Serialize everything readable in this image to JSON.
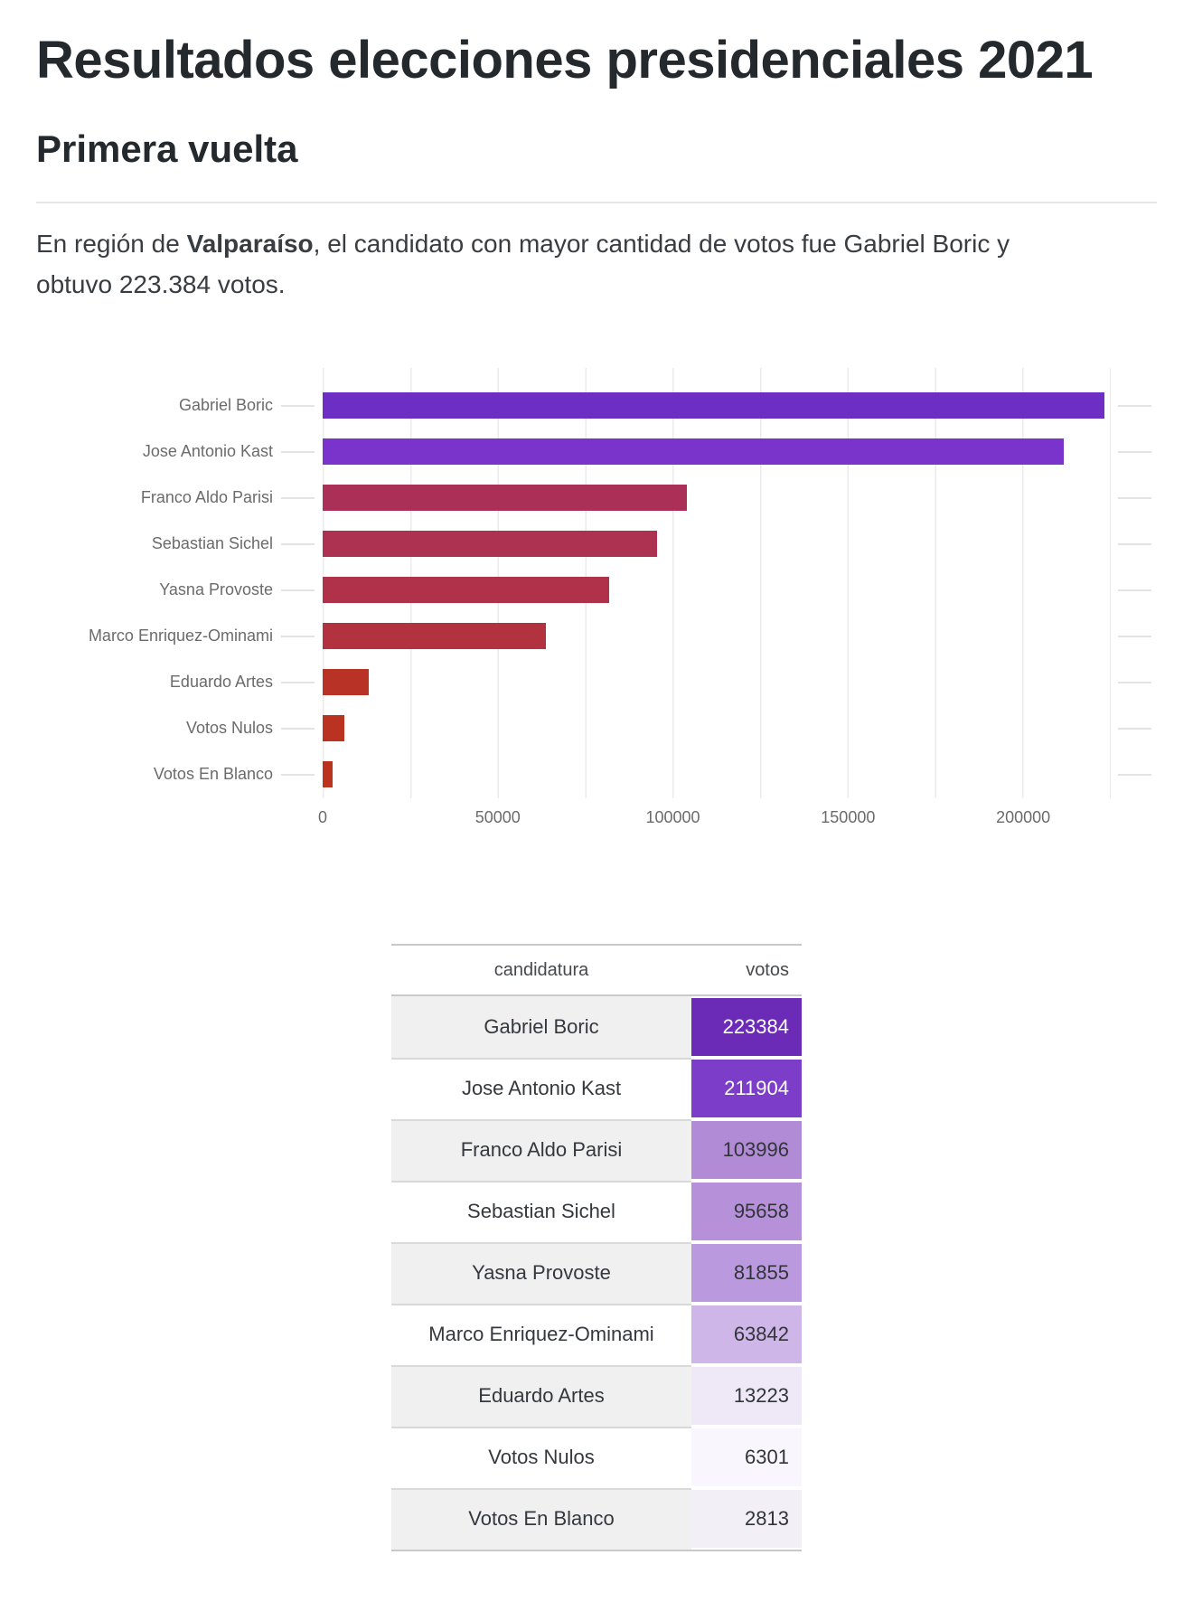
{
  "header": {
    "title": "Resultados elecciones presidenciales 2021",
    "subtitle": "Primera vuelta"
  },
  "paragraph": {
    "prefix": "En región de ",
    "region": "Valparaíso",
    "suffix": ", el candidato con mayor cantidad de votos fue Gabriel Boric y obtuvo 223.384 votos."
  },
  "chart_data": {
    "type": "bar",
    "orientation": "horizontal",
    "title": "",
    "xlabel": "",
    "ylabel": "",
    "categories": [
      "Gabriel Boric",
      "Jose Antonio Kast",
      "Franco Aldo Parisi",
      "Sebastian Sichel",
      "Yasna Provoste",
      "Marco Enriquez-Ominami",
      "Eduardo Artes",
      "Votos Nulos",
      "Votos En Blanco"
    ],
    "values": [
      223384,
      211904,
      103996,
      95658,
      81855,
      63842,
      13223,
      6301,
      2813
    ],
    "bar_colors": [
      "#6c2ec3",
      "#7a33cb",
      "#aa3058",
      "#ad3151",
      "#b0314a",
      "#b23240",
      "#b83226",
      "#ba3220",
      "#bb331d"
    ],
    "xlim": [
      0,
      225000
    ],
    "x_ticks": [
      0,
      50000,
      100000,
      150000,
      200000
    ],
    "x_tick_labels": [
      "0",
      "50000",
      "100000",
      "150000",
      "200000"
    ],
    "minor_grid_step": 25000,
    "grid": "vertical-on"
  },
  "table": {
    "columns": [
      "candidatura",
      "votos"
    ],
    "rows": [
      {
        "candidatura": "Gabriel Boric",
        "votos": "223384",
        "row_bg": "#f0f0f0",
        "cell_bg": "#6b2bb7",
        "cell_text": "#ffffff"
      },
      {
        "candidatura": "Jose Antonio Kast",
        "votos": "211904",
        "row_bg": "#ffffff",
        "cell_bg": "#7c3dc9",
        "cell_text": "#ffffff"
      },
      {
        "candidatura": "Franco Aldo Parisi",
        "votos": "103996",
        "row_bg": "#f0f0f0",
        "cell_bg": "#b28bd7",
        "cell_text": "#313439"
      },
      {
        "candidatura": "Sebastian Sichel",
        "votos": "95658",
        "row_bg": "#ffffff",
        "cell_bg": "#b691da",
        "cell_text": "#313439"
      },
      {
        "candidatura": "Yasna Provoste",
        "votos": "81855",
        "row_bg": "#f0f0f0",
        "cell_bg": "#bb99de",
        "cell_text": "#313439"
      },
      {
        "candidatura": "Marco Enriquez-Ominami",
        "votos": "63842",
        "row_bg": "#ffffff",
        "cell_bg": "#cfb6e9",
        "cell_text": "#313439"
      },
      {
        "candidatura": "Eduardo Artes",
        "votos": "13223",
        "row_bg": "#f0f0f0",
        "cell_bg": "#efe9f7",
        "cell_text": "#313439"
      },
      {
        "candidatura": "Votos Nulos",
        "votos": "6301",
        "row_bg": "#ffffff",
        "cell_bg": "#f9f7fd",
        "cell_text": "#313439"
      },
      {
        "candidatura": "Votos En Blanco",
        "votos": "2813",
        "row_bg": "#f0f0f0",
        "cell_bg": "#f2eff6",
        "cell_text": "#313439"
      }
    ]
  },
  "colors": {
    "heading_text": "#24292e",
    "body_text": "#383d42",
    "chart_label_text": "#6b6b6b",
    "gridline": "#ebebeb",
    "table_border": "#c9c9c9",
    "row_alt_bg": "#f0f0f0"
  }
}
